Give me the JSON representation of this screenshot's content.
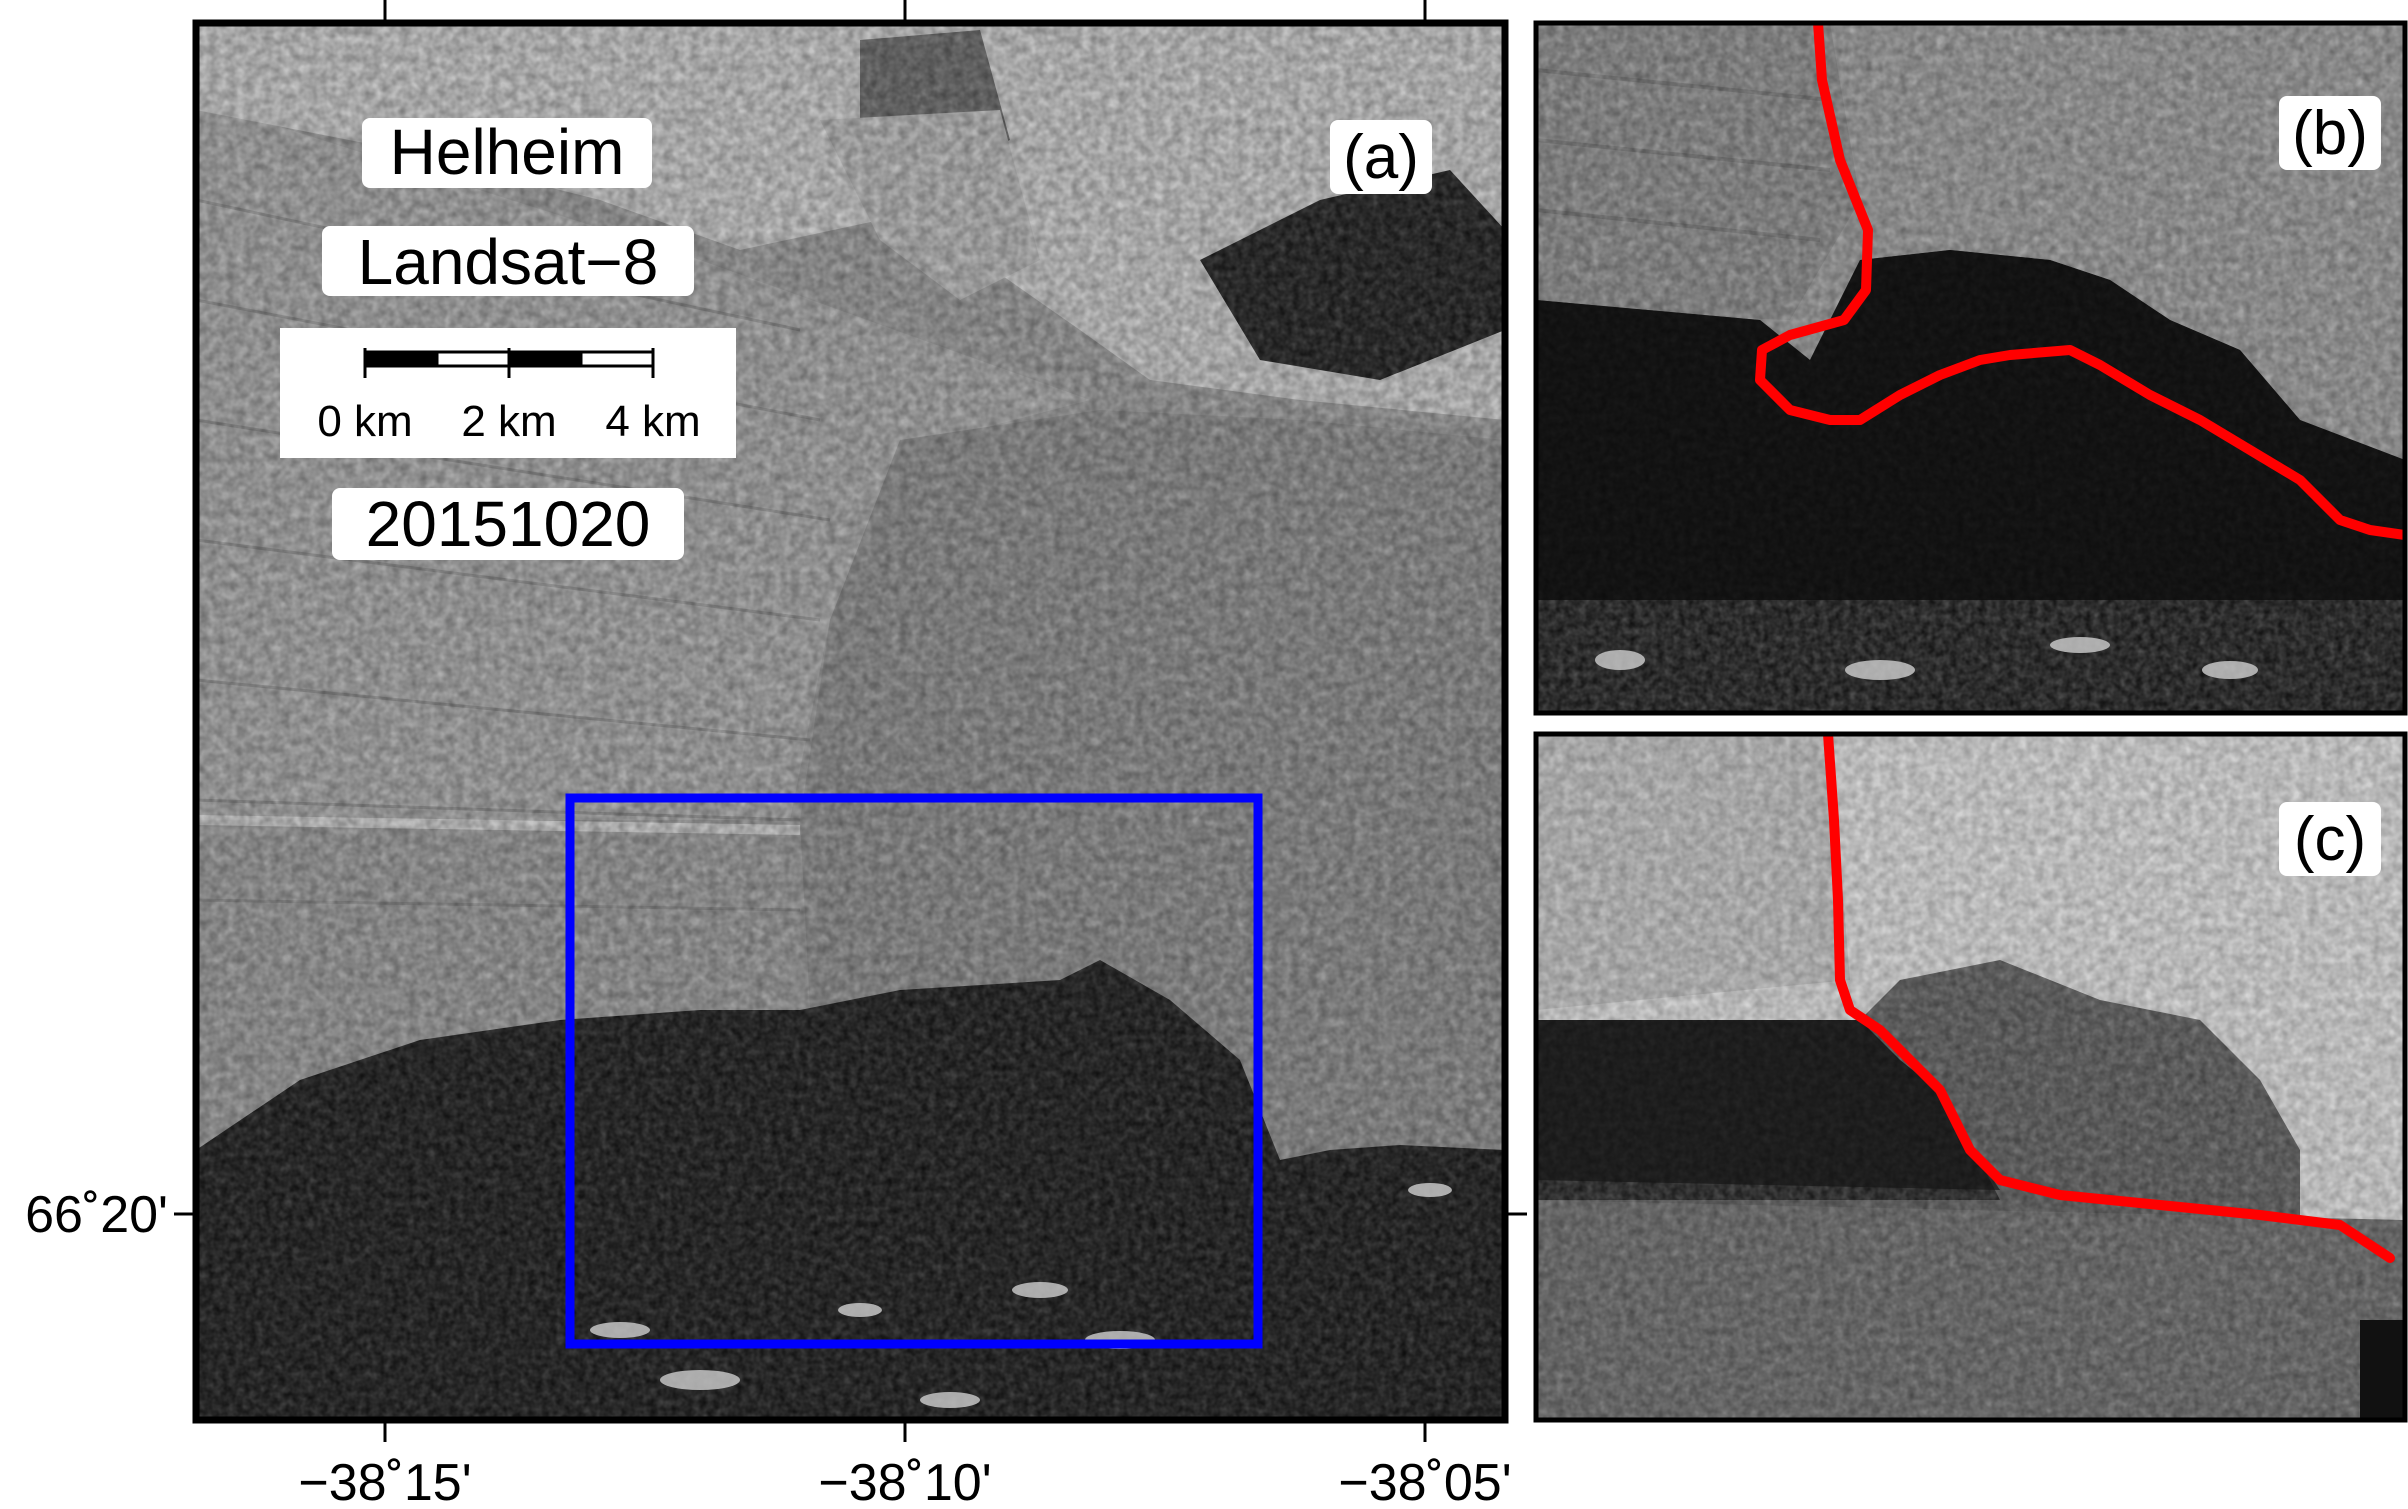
{
  "panel_a": {
    "label": "(a)",
    "glacier_name": "Helheim",
    "sensor": "Landsat−8",
    "date": "20151020",
    "scalebar": {
      "labels": [
        "0 km",
        "2 km",
        "4 km"
      ],
      "segments_km": [
        0,
        1,
        2,
        3,
        4
      ]
    },
    "x_ticks": [
      "−38˚15'",
      "−38˚10'",
      "−38˚05'"
    ],
    "y_ticks": [
      "66˚20'"
    ],
    "inset_box_color": "#0000ff"
  },
  "panel_b": {
    "label": "(b)",
    "line_color": "#ff0000"
  },
  "panel_c": {
    "label": "(c)",
    "line_color": "#ff0000"
  }
}
